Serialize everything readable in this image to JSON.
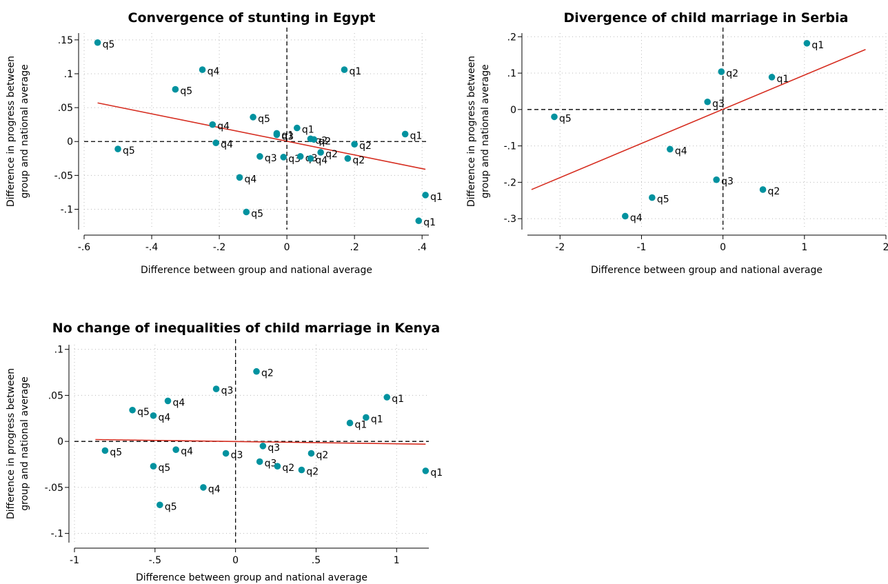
{
  "marker_color": "#00929f",
  "fit_color": "#d62d20",
  "chart_data": [
    {
      "type": "scatter",
      "title": "Convergence of stunting in Egypt",
      "xlabel": "Difference between group and national average",
      "ylabel": [
        "Difference in progress between",
        "group and national average"
      ],
      "xlim": [
        -0.6,
        0.42
      ],
      "ylim": [
        -0.13,
        0.16
      ],
      "xticks": [
        -0.6,
        -0.4,
        -0.2,
        0,
        0.2,
        0.4
      ],
      "xtick_labels": [
        "-.6",
        "-.4",
        "-.2",
        "0",
        ".2",
        ".4"
      ],
      "yticks": [
        -0.1,
        -0.05,
        0,
        0.05,
        0.1,
        0.15
      ],
      "ytick_labels": [
        "-.1",
        "-.05",
        "0",
        ".05",
        ".1",
        ".15"
      ],
      "grid": true,
      "fit_line": [
        [
          -0.56,
          0.057
        ],
        [
          0.41,
          -0.041
        ]
      ],
      "points": [
        {
          "x": -0.56,
          "y": 0.146,
          "label": "q5"
        },
        {
          "x": -0.25,
          "y": 0.106,
          "label": "q4"
        },
        {
          "x": 0.17,
          "y": 0.106,
          "label": "q1"
        },
        {
          "x": -0.33,
          "y": 0.077,
          "label": "q5"
        },
        {
          "x": -0.1,
          "y": 0.036,
          "label": "q5"
        },
        {
          "x": -0.22,
          "y": 0.025,
          "label": "q4"
        },
        {
          "x": 0.03,
          "y": 0.02,
          "label": "q1"
        },
        {
          "x": -0.03,
          "y": 0.012,
          "label": "q1"
        },
        {
          "x": -0.03,
          "y": 0.01,
          "label": "q3"
        },
        {
          "x": 0.35,
          "y": 0.011,
          "label": "q1"
        },
        {
          "x": 0.07,
          "y": 0.004,
          "label": "q2"
        },
        {
          "x": 0.08,
          "y": 0.003,
          "label": "q2"
        },
        {
          "x": -0.21,
          "y": -0.002,
          "label": "q4"
        },
        {
          "x": 0.2,
          "y": -0.004,
          "label": "q2"
        },
        {
          "x": -0.5,
          "y": -0.011,
          "label": "q5"
        },
        {
          "x": 0.1,
          "y": -0.016,
          "label": "q2"
        },
        {
          "x": -0.08,
          "y": -0.022,
          "label": "q3"
        },
        {
          "x": -0.01,
          "y": -0.023,
          "label": "q3"
        },
        {
          "x": 0.04,
          "y": -0.022,
          "label": "q3"
        },
        {
          "x": 0.07,
          "y": -0.025,
          "label": "q4"
        },
        {
          "x": 0.18,
          "y": -0.025,
          "label": "q2"
        },
        {
          "x": -0.14,
          "y": -0.053,
          "label": "q4"
        },
        {
          "x": 0.41,
          "y": -0.079,
          "label": "q1"
        },
        {
          "x": -0.12,
          "y": -0.104,
          "label": "q5"
        },
        {
          "x": 0.39,
          "y": -0.117,
          "label": "q1"
        }
      ]
    },
    {
      "type": "scatter",
      "title": "Divergence of child marriage in Serbia",
      "xlabel": "Difference between group and national average",
      "ylabel": [
        "Difference in progress between",
        "group and national average"
      ],
      "xlim": [
        -2.4,
        2.0
      ],
      "ylim": [
        -0.33,
        0.21
      ],
      "xticks": [
        -2,
        -1,
        0,
        1,
        2
      ],
      "xtick_labels": [
        "-2",
        "-1",
        "0",
        "1",
        "2"
      ],
      "yticks": [
        -0.3,
        -0.2,
        -0.1,
        0,
        0.1,
        0.2
      ],
      "ytick_labels": [
        "-.3",
        "-.2",
        "-.1",
        "0",
        ".1",
        ".2"
      ],
      "grid": true,
      "fit_line": [
        [
          -2.35,
          -0.22
        ],
        [
          1.75,
          0.165
        ]
      ],
      "points": [
        {
          "x": 1.03,
          "y": 0.182,
          "label": "q1"
        },
        {
          "x": -0.02,
          "y": 0.104,
          "label": "q2"
        },
        {
          "x": 0.6,
          "y": 0.089,
          "label": "q1"
        },
        {
          "x": -0.19,
          "y": 0.021,
          "label": "q3"
        },
        {
          "x": -2.07,
          "y": -0.02,
          "label": "q5"
        },
        {
          "x": -0.65,
          "y": -0.109,
          "label": "q4"
        },
        {
          "x": -0.08,
          "y": -0.193,
          "label": "q3"
        },
        {
          "x": 0.49,
          "y": -0.22,
          "label": "q2"
        },
        {
          "x": -0.87,
          "y": -0.242,
          "label": "q5"
        },
        {
          "x": -1.2,
          "y": -0.293,
          "label": "q4"
        }
      ]
    },
    {
      "type": "scatter",
      "title": "No change of inequalities of child marriage in Kenya",
      "xlabel": "Difference between group and national average",
      "ylabel": [
        "Difference in progress between",
        "group and national average"
      ],
      "xlim": [
        -1.0,
        1.2
      ],
      "ylim": [
        -0.11,
        0.105
      ],
      "xticks": [
        -1,
        -0.5,
        0,
        0.5,
        1
      ],
      "xtick_labels": [
        "-1",
        "-.5",
        "0",
        ".5",
        "1"
      ],
      "yticks": [
        -0.1,
        -0.05,
        0,
        0.05,
        0.1
      ],
      "ytick_labels": [
        "-.1",
        "-.05",
        "0",
        ".05",
        ".1"
      ],
      "grid": true,
      "fit_line": [
        [
          -0.87,
          0.002
        ],
        [
          1.18,
          -0.003
        ]
      ],
      "points": [
        {
          "x": 0.13,
          "y": 0.076,
          "label": "q2"
        },
        {
          "x": -0.12,
          "y": 0.057,
          "label": "q3"
        },
        {
          "x": 0.94,
          "y": 0.048,
          "label": "q1"
        },
        {
          "x": -0.42,
          "y": 0.044,
          "label": "q4"
        },
        {
          "x": -0.64,
          "y": 0.034,
          "label": "q5"
        },
        {
          "x": -0.51,
          "y": 0.028,
          "label": "q4"
        },
        {
          "x": 0.81,
          "y": 0.026,
          "label": "q1"
        },
        {
          "x": 0.71,
          "y": 0.02,
          "label": "q1"
        },
        {
          "x": 0.17,
          "y": -0.005,
          "label": "q3"
        },
        {
          "x": -0.81,
          "y": -0.01,
          "label": "q5"
        },
        {
          "x": -0.37,
          "y": -0.009,
          "label": "q4"
        },
        {
          "x": -0.06,
          "y": -0.013,
          "label": "q3"
        },
        {
          "x": 0.47,
          "y": -0.013,
          "label": "q2"
        },
        {
          "x": 0.15,
          "y": -0.022,
          "label": "q3"
        },
        {
          "x": 0.26,
          "y": -0.027,
          "label": "q2"
        },
        {
          "x": -0.51,
          "y": -0.027,
          "label": "q5"
        },
        {
          "x": 0.41,
          "y": -0.031,
          "label": "q2"
        },
        {
          "x": 1.18,
          "y": -0.032,
          "label": "q1"
        },
        {
          "x": -0.2,
          "y": -0.05,
          "label": "q4"
        },
        {
          "x": -0.47,
          "y": -0.069,
          "label": "q5"
        }
      ]
    }
  ]
}
